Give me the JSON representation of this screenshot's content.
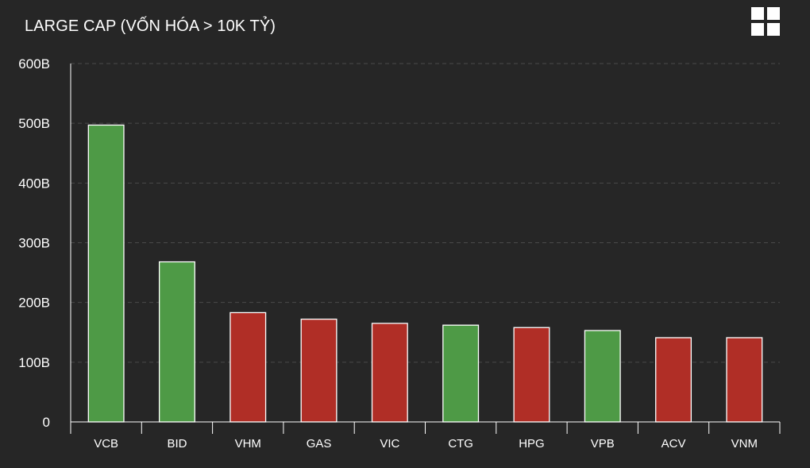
{
  "chart_data": {
    "type": "bar",
    "title": "LARGE CAP (VỐN HÓA > 10K TỶ)",
    "categories": [
      "VCB",
      "BID",
      "VHM",
      "GAS",
      "VIC",
      "CTG",
      "HPG",
      "VPB",
      "ACV",
      "VNM"
    ],
    "values": [
      497,
      268,
      183,
      172,
      165,
      162,
      158,
      153,
      141,
      141
    ],
    "bar_colors": [
      "#4e9a46",
      "#4e9a46",
      "#b02e26",
      "#b02e26",
      "#b02e26",
      "#4e9a46",
      "#b02e26",
      "#4e9a46",
      "#b02e26",
      "#b02e26"
    ],
    "ylim": [
      0,
      600
    ],
    "y_ticks": [
      0,
      100,
      200,
      300,
      400,
      500,
      600
    ],
    "y_tick_labels": [
      "0",
      "100B",
      "200B",
      "300B",
      "400B",
      "500B",
      "600B"
    ],
    "xlabel": "",
    "ylabel": "",
    "grid": true
  },
  "toolbar": {
    "menu_icon": "grid-icon"
  },
  "colors": {
    "background": "#262626",
    "grid": "#4a4a4a",
    "axis": "#ffffff"
  }
}
